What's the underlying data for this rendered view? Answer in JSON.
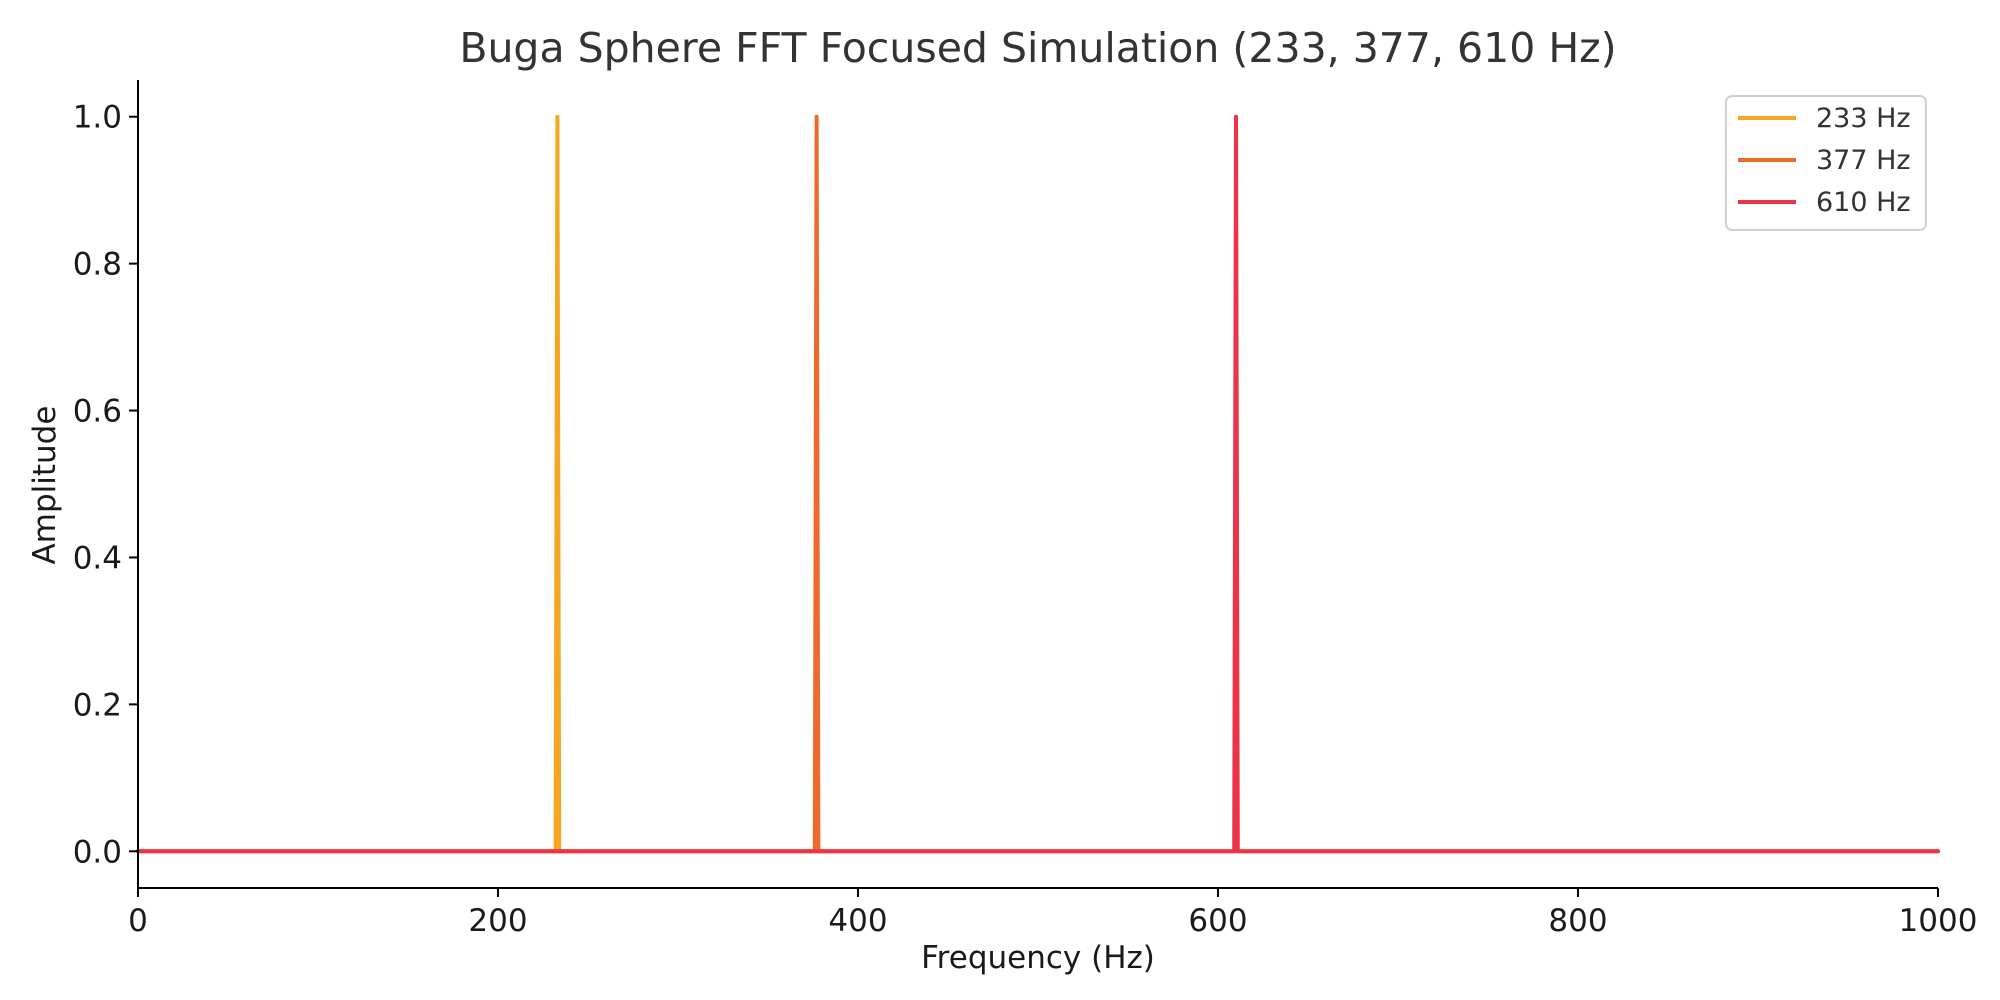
{
  "chart_data": {
    "type": "line",
    "title": "Buga Sphere FFT Focused Simulation (233, 377, 610 Hz)",
    "xlabel": "Frequency (Hz)",
    "ylabel": "Amplitude",
    "xlim": [
      0,
      1000
    ],
    "ylim": [
      -0.05,
      1.05
    ],
    "x_ticks": [
      0,
      200,
      400,
      600,
      800,
      1000
    ],
    "x_tick_labels": [
      "0",
      "200",
      "400",
      "600",
      "800",
      "1000"
    ],
    "y_ticks": [
      0.0,
      0.2,
      0.4,
      0.6,
      0.8,
      1.0
    ],
    "y_tick_labels": [
      "0.0",
      "0.2",
      "0.4",
      "0.6",
      "0.8",
      "1.0"
    ],
    "grid": false,
    "legend_position": "top-right",
    "series": [
      {
        "name": "233 Hz",
        "color": "#F5A623",
        "x": [
          0,
          232,
          233,
          234,
          1000
        ],
        "y": [
          0,
          0,
          1.0,
          0,
          0
        ]
      },
      {
        "name": "377 Hz",
        "color": "#EE6A2C",
        "x": [
          0,
          376,
          377,
          378,
          1000
        ],
        "y": [
          0,
          0,
          1.0,
          0,
          0
        ]
      },
      {
        "name": "610 Hz",
        "color": "#EB3449",
        "x": [
          0,
          609,
          610,
          611,
          1000
        ],
        "y": [
          0,
          0,
          1.0,
          0,
          0
        ]
      }
    ]
  }
}
